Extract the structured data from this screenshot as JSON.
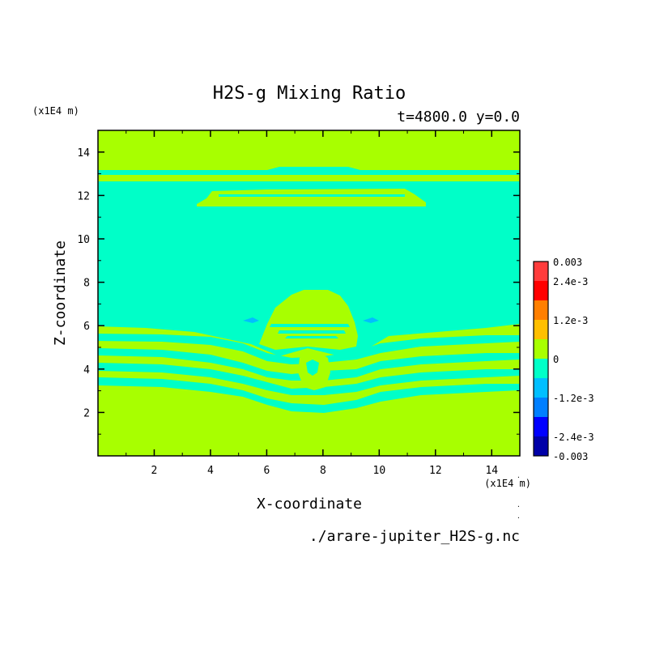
{
  "chart_data": {
    "type": "heatmap",
    "title": "H2S-g Mixing Ratio",
    "subtitle": "t=4800.0 y=0.0",
    "xlabel": "X-coordinate",
    "ylabel": "Z-coordinate",
    "x_unit": "(x1E4 m)",
    "y_unit": "(x1E4 m)",
    "xlim": [
      0.0,
      15.0
    ],
    "ylim": [
      0.0,
      15.0
    ],
    "x_ticks": [
      2,
      4,
      6,
      8,
      10,
      12,
      14
    ],
    "y_ticks": [
      2,
      4,
      6,
      8,
      10,
      12,
      14
    ],
    "x_tick_labels": [
      "2",
      "4",
      "6",
      "8",
      "10",
      "12",
      "14"
    ],
    "y_tick_labels": [
      "2",
      "4",
      "6",
      "8",
      "10",
      "12",
      "14"
    ],
    "source_file": "./arare-jupiter_H2S-g.nc",
    "colorbar": {
      "labels": [
        "0.003",
        "2.4e-3",
        "1.2e-3",
        "0",
        "-1.2e-3",
        "-2.4e-3",
        "-0.003"
      ],
      "label_values": [
        0.003,
        0.0024,
        0.0012,
        0.0,
        -0.0012,
        -0.0024,
        -0.003
      ],
      "levels": [
        0.003,
        0.0024,
        0.0018,
        0.0012,
        0.0006,
        0.0,
        -0.0006,
        -0.0012,
        -0.0018,
        -0.0024,
        -0.003
      ],
      "colors": [
        "#ff3c3c",
        "#ff0000",
        "#ff7f00",
        "#ffbf00",
        "#a8ff00",
        "#00ffc8",
        "#00bfff",
        "#007fff",
        "#0000ff",
        "#0000a8"
      ]
    },
    "colors": {
      "positive_band": "#a8ff00",
      "negative_band": "#00ffc8",
      "negative_blob": "#00bfff"
    },
    "regions": [
      {
        "value": "0 to 6e-4",
        "z_range": [
          0.0,
          2.8
        ],
        "description": "lower layer"
      },
      {
        "value": "-6e-4 to 0",
        "z_range": [
          6.3,
          12.4
        ],
        "description": "middle layer"
      },
      {
        "value": "0 to 6e-4",
        "z_range": [
          13.2,
          15.0
        ],
        "description": "upper layer"
      }
    ]
  }
}
